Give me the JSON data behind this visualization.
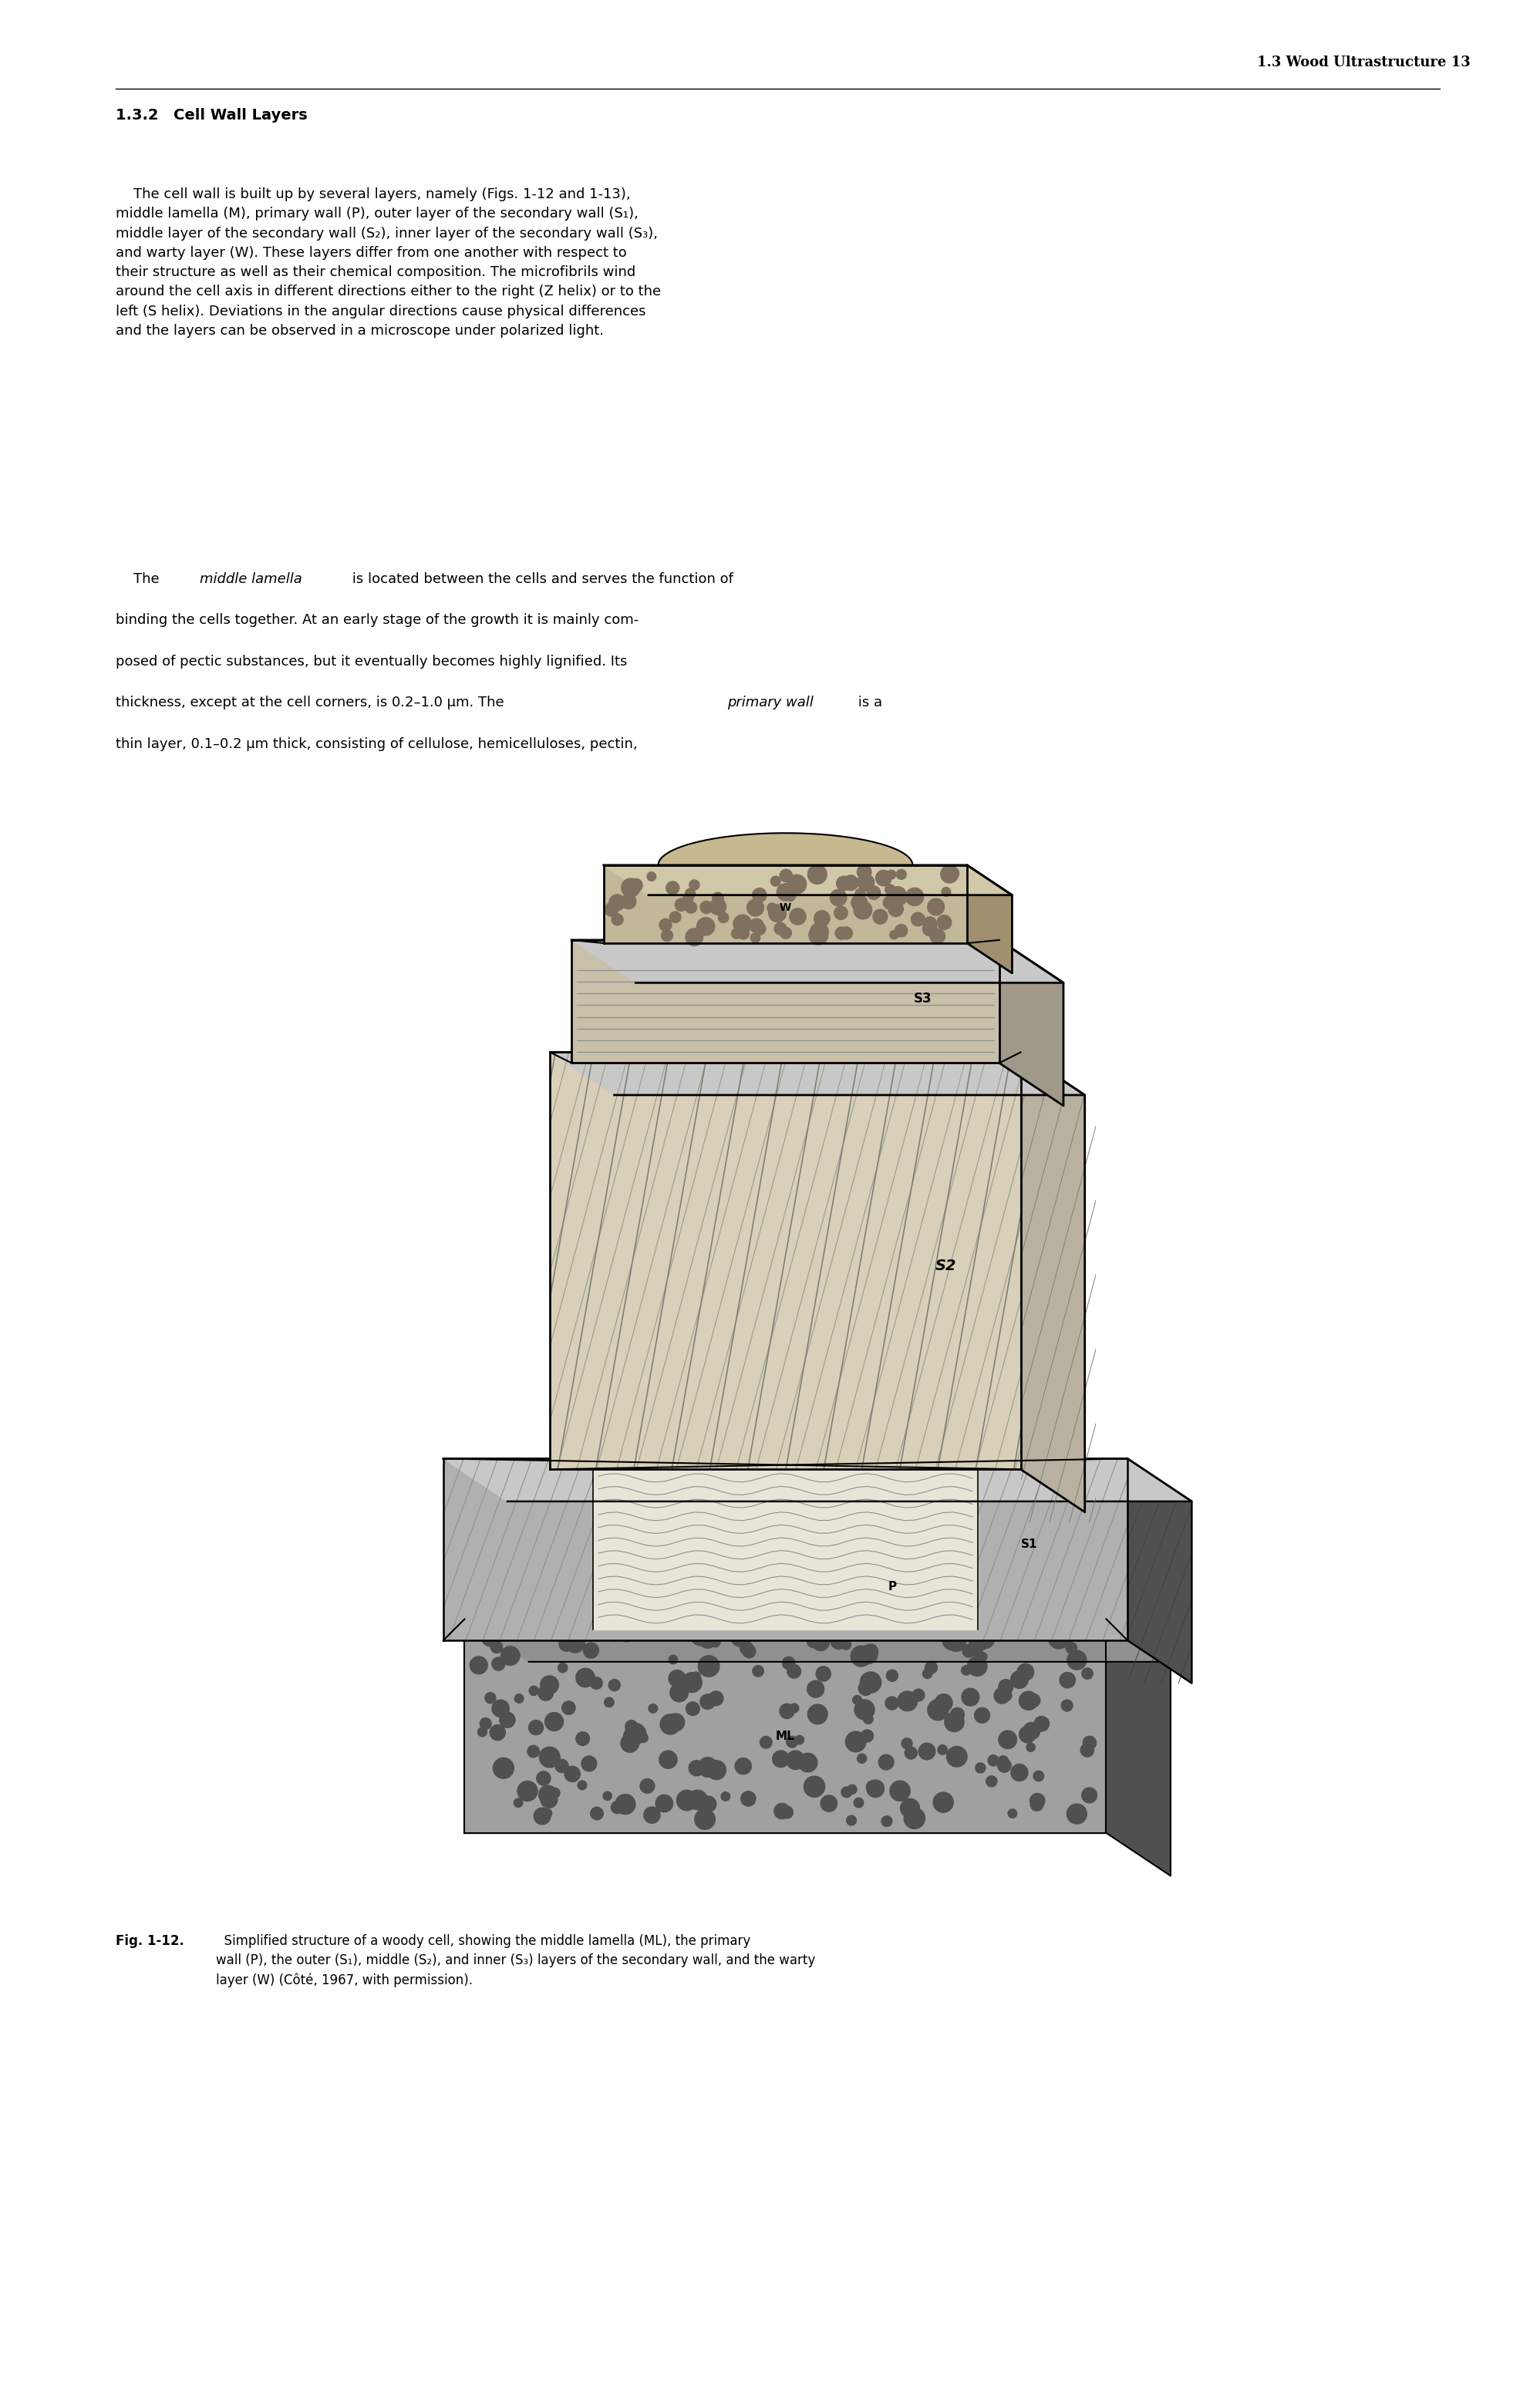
{
  "page_header": "1.3 Wood Ultrastructure 13",
  "section_heading": "1.3.2 Cell Wall Layers",
  "para1_lines": [
    "    The cell wall is built up by several layers, namely (Figs. 1-12 and 1-13),",
    "middle lamella (M), primary wall (P), outer layer of the secondary wall (S₁),",
    "middle layer of the secondary wall (S₂), inner layer of the secondary wall (S₃),",
    "and warty layer (W). These layers differ from one another with respect to",
    "their structure as well as their chemical composition. The microfibrils wind",
    "around the cell axis in different directions either to the right (Z helix) or to the",
    "left (S helix). Deviations in the angular directions cause physical differences",
    "and the layers can be observed in a microscope under polarized light."
  ],
  "para2_lines": [
    [
      [
        "    The ",
        "normal"
      ],
      [
        "middle lamella",
        "italic"
      ],
      [
        " is located between the cells and serves the function of",
        "normal"
      ]
    ],
    [
      [
        "binding the cells together. At an early stage of the growth it is mainly com-",
        "normal"
      ]
    ],
    [
      [
        "posed of pectic substances, but it eventually becomes highly lignified. Its",
        "normal"
      ]
    ],
    [
      [
        "thickness, except at the cell corners, is 0.2–1.0 μm. The ",
        "normal"
      ],
      [
        "primary wall",
        "italic"
      ],
      [
        " is a",
        "normal"
      ]
    ],
    [
      [
        "thin layer, 0.1–0.2 μm thick, consisting of cellulose, hemicelluloses, pectin,",
        "normal"
      ]
    ]
  ],
  "figure_caption_bold": "Fig. 1-12.",
  "figure_caption_normal": "  Simplified structure of a woody cell, showing the middle lamella (ML), the primary\nwall (P), the outer (S₁), middle (S₂), and inner (S₃) layers of the secondary wall, and the warty\nlayer (W) (Côté, 1967, with permission).",
  "background_color": "#ffffff",
  "text_color": "#000000",
  "font_size_header": 13,
  "font_size_section": 14,
  "font_size_body": 13,
  "font_size_caption": 12,
  "page_width": 19.97,
  "page_height": 31.16
}
